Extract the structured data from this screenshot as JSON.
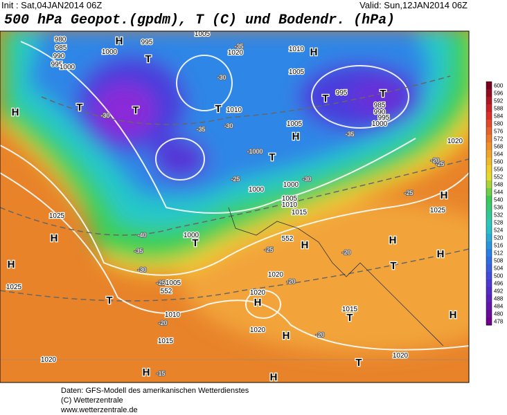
{
  "header": {
    "init": "Init : Sat,04JAN2014 06Z",
    "valid": "Valid: Sun,12JAN2014 06Z",
    "title": "500 hPa Geopot.(gpdm), T (C) und Bodendr. (hPa)"
  },
  "colorbar": {
    "labels": [
      "600",
      "596",
      "592",
      "588",
      "584",
      "580",
      "576",
      "572",
      "568",
      "564",
      "560",
      "556",
      "552",
      "548",
      "544",
      "540",
      "536",
      "532",
      "528",
      "524",
      "520",
      "516",
      "512",
      "508",
      "504",
      "500",
      "496",
      "492",
      "488",
      "484",
      "480",
      "478"
    ]
  },
  "map": {
    "labels": [
      "H",
      "995",
      "T",
      "980",
      "985",
      "990",
      "995",
      "1000",
      "1000",
      "1005",
      "1020",
      "1010",
      "H",
      "1005",
      "T",
      "995",
      "T",
      "985",
      "990",
      "995",
      "1000",
      "H",
      "T",
      "T",
      "T",
      "1010",
      "H",
      "T",
      "1005",
      "1000",
      "1000",
      "1005",
      "1010",
      "1015",
      "1025",
      "H",
      "H",
      "1025",
      "T",
      "1000",
      "1005",
      "T",
      "1010",
      "1015",
      "1020",
      "H",
      "H",
      "1020",
      "1020",
      "H",
      "T",
      "T",
      "1015",
      "1020",
      "H",
      "T",
      "1020",
      "H",
      "H",
      "H",
      "1025",
      "1020",
      "H",
      "H",
      "552",
      "552"
    ],
    "temps": [
      "-30",
      "-35",
      "-30",
      "-35",
      "-30",
      "-25",
      "-40",
      "-35",
      "-30",
      "-25",
      "-20",
      "-20",
      "-25",
      "-20",
      "-20",
      "-15",
      "-25",
      "-20",
      "-25",
      "-30",
      "-35",
      "-1000"
    ]
  },
  "footer": [
    "Daten: GFS-Modell des amerikanischen Wetterdienstes",
    "(C) Wetterzentrale",
    "www.wetterzentrale.de"
  ]
}
